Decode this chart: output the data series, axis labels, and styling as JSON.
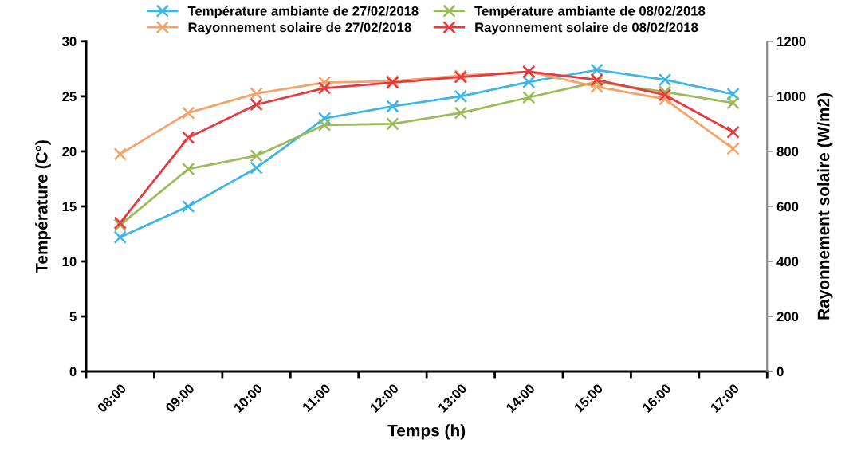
{
  "chart_data": {
    "type": "line",
    "xlabel": "Temps (h)",
    "ylabel": "Température (C°)",
    "y2label": "Rayonnement solaire (W/m2)",
    "categories": [
      "08:00",
      "09:00",
      "10:00",
      "11:00",
      "12:00",
      "13:00",
      "14:00",
      "15:00",
      "16:00",
      "17:00"
    ],
    "series": [
      {
        "name": "Température ambiante de 27/02/2018",
        "color": "#3fb5e6",
        "values": [
          12.2,
          15.0,
          18.5,
          23.0,
          24.1,
          25.0,
          26.3,
          27.4,
          26.5,
          25.2
        ]
      },
      {
        "name": "Température ambiante de 08/02/2018",
        "color": "#9bbb59",
        "values": [
          13.3,
          18.4,
          19.6,
          22.4,
          22.5,
          23.5,
          24.9,
          26.3,
          25.4,
          24.4
        ]
      },
      {
        "name": "Rayonnement solaire de 27/02/2018",
        "color": "#f4a46a",
        "axis": "y2",
        "values": [
          790,
          940,
          1010,
          1050,
          1055,
          1075,
          1090,
          1035,
          990,
          810
        ]
      },
      {
        "name": "Rayonnement solaire de 08/02/2018",
        "color": "#e83a3e",
        "axis": "y2",
        "values": [
          540,
          850,
          970,
          1030,
          1050,
          1070,
          1090,
          1060,
          1005,
          870
        ]
      }
    ],
    "ylim": [
      0,
      30
    ],
    "yticks": [
      0,
      5,
      10,
      15,
      20,
      25,
      30
    ],
    "y2lim": [
      0,
      1200
    ],
    "y2ticks": [
      0,
      200,
      400,
      600,
      800,
      1000,
      1200
    ],
    "legend": "top",
    "grid": false,
    "marker": "cross",
    "line_style": "solid"
  }
}
